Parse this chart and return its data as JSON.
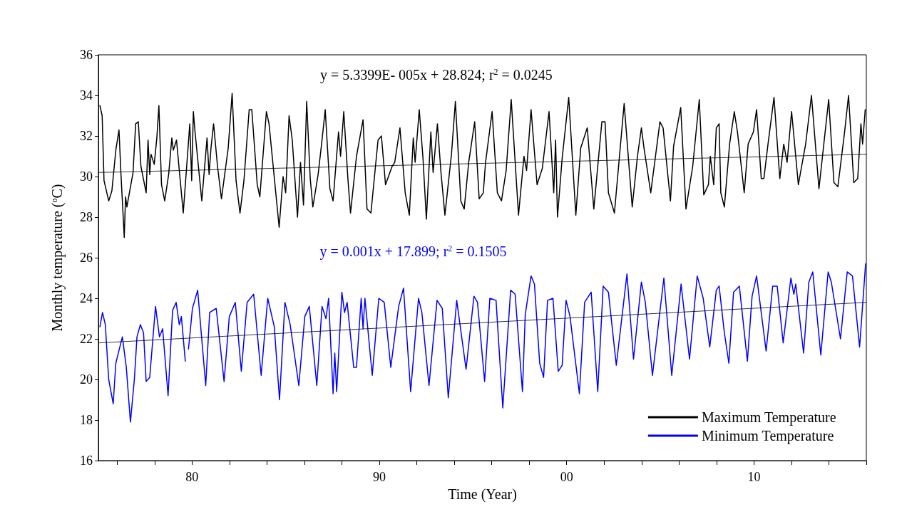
{
  "chart_data": {
    "type": "line",
    "xlabel": "Time (Year)",
    "ylabel": "Monthly temperature ($^{o}$C)",
    "xlim": [
      1975,
      2016
    ],
    "xticks": [
      {
        "value": 1976,
        "label": null
      },
      {
        "value": 1978,
        "label": null
      },
      {
        "value": 1980,
        "label": "80"
      },
      {
        "value": 1982,
        "label": null
      },
      {
        "value": 1984,
        "label": null
      },
      {
        "value": 1986,
        "label": null
      },
      {
        "value": 1988,
        "label": null
      },
      {
        "value": 1990,
        "label": "90"
      },
      {
        "value": 1992,
        "label": null
      },
      {
        "value": 1994,
        "label": null
      },
      {
        "value": 1996,
        "label": null
      },
      {
        "value": 1998,
        "label": null
      },
      {
        "value": 2000,
        "label": "00"
      },
      {
        "value": 2002,
        "label": null
      },
      {
        "value": 2004,
        "label": null
      },
      {
        "value": 2006,
        "label": null
      },
      {
        "value": 2008,
        "label": null
      },
      {
        "value": 2010,
        "label": "10"
      },
      {
        "value": 2012,
        "label": null
      },
      {
        "value": 2014,
        "label": null
      },
      {
        "value": 2016,
        "label": null
      }
    ],
    "ylim": [
      16,
      36
    ],
    "yticks": [
      16,
      18,
      20,
      22,
      24,
      26,
      28,
      30,
      32,
      34,
      36
    ],
    "grid": false,
    "legend": "bottom right",
    "marker": "none",
    "annotations": [
      "y = 5.3399E- 005x + 28.824; r$^{2}$ = 0.0245",
      "y = 0.001x + 17.899; r$^{2}$ = 0.1505"
    ],
    "series": [
      {
        "name": "Maximum Temperature",
        "color": "#000000",
        "x": [
          1975.08,
          1975.2,
          1975.3,
          1975.55,
          1975.72,
          1975.93,
          1976.1,
          1976.2,
          1976.38,
          1976.45,
          1976.52,
          1976.85,
          1976.99,
          1977.13,
          1977.27,
          1977.55,
          1977.65,
          1977.74,
          1977.81,
          1977.98,
          1978.12,
          1978.23,
          1978.37,
          1978.54,
          1978.75,
          1978.92,
          1979.0,
          1979.17,
          1979.53,
          1979.88,
          1979.98,
          1980.07,
          1980.16,
          1980.52,
          1980.8,
          1980.91,
          1981.01,
          1981.15,
          1981.36,
          1981.57,
          1981.93,
          1982.14,
          1982.35,
          1982.56,
          1982.77,
          1983.05,
          1983.19,
          1983.48,
          1983.62,
          1983.97,
          1984.11,
          1984.65,
          1984.86,
          1985.0,
          1985.18,
          1985.35,
          1985.63,
          1985.79,
          1985.95,
          1986.12,
          1986.31,
          1986.45,
          1986.73,
          1986.94,
          1987.11,
          1987.36,
          1987.53,
          1987.82,
          1987.93,
          1988.1,
          1988.32,
          1988.46,
          1988.78,
          1989.13,
          1989.34,
          1989.55,
          1989.93,
          1990.11,
          1990.33,
          1990.68,
          1990.82,
          1991.1,
          1991.38,
          1991.6,
          1991.81,
          1991.91,
          1992.13,
          1992.33,
          1992.51,
          1992.75,
          1992.87,
          1993.1,
          1993.29,
          1993.5,
          1993.85,
          1994.06,
          1994.35,
          1994.53,
          1994.77,
          1995.09,
          1995.33,
          1995.55,
          1995.67,
          1996.02,
          1996.3,
          1996.52,
          1996.77,
          1997.04,
          1997.43,
          1997.72,
          1997.86,
          1998.1,
          1998.42,
          1998.7,
          1999.06,
          1999.31,
          1999.41,
          1999.51,
          1999.76,
          2000.11,
          2000.49,
          2000.75,
          2001.1,
          2001.45,
          2001.88,
          2002.05,
          2002.23,
          2002.55,
          2003.07,
          2003.5,
          2003.78,
          2003.99,
          2004.13,
          2004.49,
          2004.98,
          2005.15,
          2005.54,
          2005.71,
          2006.09,
          2006.37,
          2006.73,
          2007.08,
          2007.32,
          2007.57,
          2007.67,
          2007.85,
          2007.99,
          2008.14,
          2008.23,
          2008.42,
          2008.7,
          2008.95,
          2009.12,
          2009.48,
          2009.69,
          2009.97,
          2010.14,
          2010.39,
          2010.53,
          2010.75,
          2011.07,
          2011.38,
          2011.59,
          2011.77,
          2012.01,
          2012.37,
          2012.76,
          2013.07,
          2013.47,
          2013.99,
          2014.27,
          2014.48,
          2014.84,
          2015.05,
          2015.33,
          2015.54,
          2015.71,
          2015.8,
          2015.94
        ],
        "values": [
          33.5,
          33.0,
          29.8,
          28.8,
          29.3,
          31.3,
          32.3,
          30.2,
          27.0,
          29.0,
          28.5,
          30.2,
          32.6,
          32.7,
          30.5,
          29.2,
          31.8,
          30.1,
          31.1,
          30.6,
          31.9,
          33.5,
          29.6,
          28.8,
          30.1,
          31.9,
          31.3,
          31.8,
          28.2,
          32.6,
          29.8,
          33.2,
          32.2,
          28.8,
          31.9,
          30.1,
          31.4,
          32.6,
          30.5,
          28.9,
          31.4,
          34.1,
          29.8,
          28.2,
          29.8,
          33.3,
          33.3,
          29.6,
          29.0,
          33.2,
          32.6,
          27.5,
          30.0,
          29.2,
          33.0,
          31.8,
          28.0,
          30.7,
          28.6,
          33.7,
          29.9,
          28.5,
          30.1,
          31.8,
          33.3,
          29.4,
          28.8,
          32.2,
          31.0,
          33.2,
          29.9,
          28.2,
          31.0,
          32.8,
          28.4,
          28.2,
          31.8,
          32.0,
          29.6,
          30.5,
          30.7,
          32.4,
          29.2,
          28.1,
          31.9,
          30.7,
          33.3,
          30.9,
          27.9,
          32.2,
          30.2,
          32.6,
          30.2,
          28.1,
          31.1,
          33.7,
          28.8,
          28.4,
          30.7,
          32.7,
          28.9,
          29.2,
          30.7,
          33.2,
          29.2,
          28.8,
          30.3,
          33.8,
          28.1,
          31.0,
          30.3,
          33.3,
          29.6,
          30.4,
          33.2,
          29.2,
          31.8,
          28.0,
          30.9,
          33.9,
          28.1,
          31.4,
          32.4,
          28.4,
          32.7,
          32.7,
          29.2,
          28.2,
          33.6,
          28.5,
          31.0,
          32.4,
          31.4,
          29.2,
          32.7,
          32.4,
          28.8,
          31.5,
          33.4,
          28.4,
          30.5,
          33.8,
          29.1,
          29.6,
          31.0,
          29.6,
          32.4,
          32.6,
          29.2,
          28.5,
          31.6,
          33.2,
          32.2,
          29.2,
          31.6,
          32.2,
          33.3,
          29.9,
          29.9,
          31.6,
          33.9,
          29.9,
          31.6,
          30.7,
          33.2,
          29.6,
          31.6,
          34.0,
          29.4,
          33.8,
          29.7,
          29.5,
          32.2,
          34.0,
          29.7,
          29.9,
          32.6,
          31.6,
          33.3
        ]
      },
      {
        "name": "Minimum Temperature",
        "color": "#0000ff",
        "x": [
          1975.08,
          1975.22,
          1975.37,
          1975.55,
          1975.79,
          1975.93,
          1976.28,
          1976.49,
          1976.71,
          1976.92,
          1977.06,
          1977.24,
          1977.41,
          1977.55,
          1977.74,
          1978.05,
          1978.26,
          1978.43,
          1978.72,
          1978.96,
          1979.15,
          1979.32,
          1979.43,
          1979.64,
          1979.72,
          1979.81,
          1980.02,
          1980.3,
          1980.49,
          1980.73,
          1980.94,
          1981.29,
          1981.71,
          1981.99,
          1982.31,
          1982.63,
          1982.94,
          1983.29,
          1983.69,
          1984.04,
          1984.39,
          1984.67,
          1984.96,
          1985.24,
          1985.7,
          1986.02,
          1986.26,
          1986.66,
          1986.94,
          1987.15,
          1987.29,
          1987.53,
          1987.62,
          1987.72,
          1988.0,
          1988.14,
          1988.28,
          1988.63,
          1988.78,
          1989.03,
          1989.13,
          1989.23,
          1989.62,
          1989.97,
          1990.26,
          1990.61,
          1991.03,
          1991.29,
          1991.67,
          1992.09,
          1992.27,
          1992.65,
          1993.08,
          1993.36,
          1993.68,
          1994.13,
          1994.63,
          1995.05,
          1995.24,
          1995.62,
          1995.9,
          1996.23,
          1996.59,
          1997.01,
          1997.25,
          1997.64,
          1997.79,
          1998.1,
          1998.28,
          1998.56,
          1998.77,
          1998.98,
          1999.27,
          1999.55,
          1999.76,
          1999.97,
          2000.18,
          2000.68,
          2000.96,
          2001.31,
          2001.66,
          2001.95,
          2002.23,
          2002.65,
          2003.22,
          2003.57,
          2003.99,
          2004.2,
          2004.58,
          2005.19,
          2005.61,
          2006.11,
          2006.56,
          2006.97,
          2007.29,
          2007.64,
          2007.99,
          2008.14,
          2008.42,
          2008.66,
          2008.91,
          2009.22,
          2009.65,
          2009.9,
          2010.14,
          2010.65,
          2011.0,
          2011.24,
          2011.56,
          2011.97,
          2012.13,
          2012.23,
          2012.65,
          2012.93,
          2013.14,
          2013.57,
          2013.96,
          2014.13,
          2014.62,
          2014.98,
          2015.26,
          2015.64,
          2015.82,
          2015.96
        ],
        "values": [
          22.6,
          23.3,
          22.7,
          20.0,
          18.8,
          20.8,
          22.1,
          20.6,
          17.9,
          20.0,
          22.1,
          22.7,
          22.3,
          19.9,
          20.1,
          23.6,
          22.1,
          22.5,
          19.2,
          23.4,
          23.8,
          22.7,
          23.1,
          20.9,
          null,
          21.5,
          23.5,
          24.4,
          22.3,
          19.7,
          23.3,
          23.5,
          19.9,
          23.1,
          23.8,
          20.4,
          23.8,
          24.2,
          20.2,
          24.0,
          22.6,
          19.0,
          23.8,
          22.7,
          19.7,
          23.1,
          23.6,
          19.7,
          23.6,
          23.0,
          24.0,
          19.3,
          21.3,
          19.4,
          24.3,
          23.3,
          23.8,
          20.6,
          20.6,
          24.0,
          22.5,
          24.0,
          20.2,
          24.0,
          23.8,
          20.6,
          23.6,
          24.5,
          19.4,
          24.0,
          23.3,
          19.7,
          23.9,
          23.5,
          19.1,
          23.9,
          20.5,
          24.1,
          23.8,
          19.9,
          24.0,
          23.9,
          18.6,
          24.4,
          24.2,
          19.4,
          23.2,
          25.1,
          24.7,
          20.8,
          20.1,
          23.9,
          24.0,
          20.4,
          20.7,
          23.9,
          23.1,
          19.3,
          23.8,
          24.3,
          19.4,
          24.6,
          24.3,
          20.7,
          25.2,
          21.0,
          24.8,
          23.8,
          20.2,
          25.0,
          20.2,
          24.7,
          21.0,
          25.1,
          24.0,
          21.6,
          24.4,
          24.6,
          22.3,
          20.8,
          24.3,
          24.6,
          20.9,
          24.1,
          25.1,
          21.4,
          24.6,
          24.6,
          21.8,
          25.0,
          24.2,
          24.7,
          21.3,
          24.8,
          25.3,
          21.2,
          25.3,
          24.8,
          22.0,
          25.3,
          25.1,
          21.6,
          23.9,
          25.7
        ]
      },
      {
        "type": "line",
        "color": "#000000",
        "x": [
          1975,
          2016
        ],
        "values": [
          30.2,
          31.1
        ]
      },
      {
        "type": "line",
        "color": "#000000",
        "x": [
          1975,
          2016
        ],
        "values": [
          21.8,
          23.8
        ]
      }
    ]
  }
}
